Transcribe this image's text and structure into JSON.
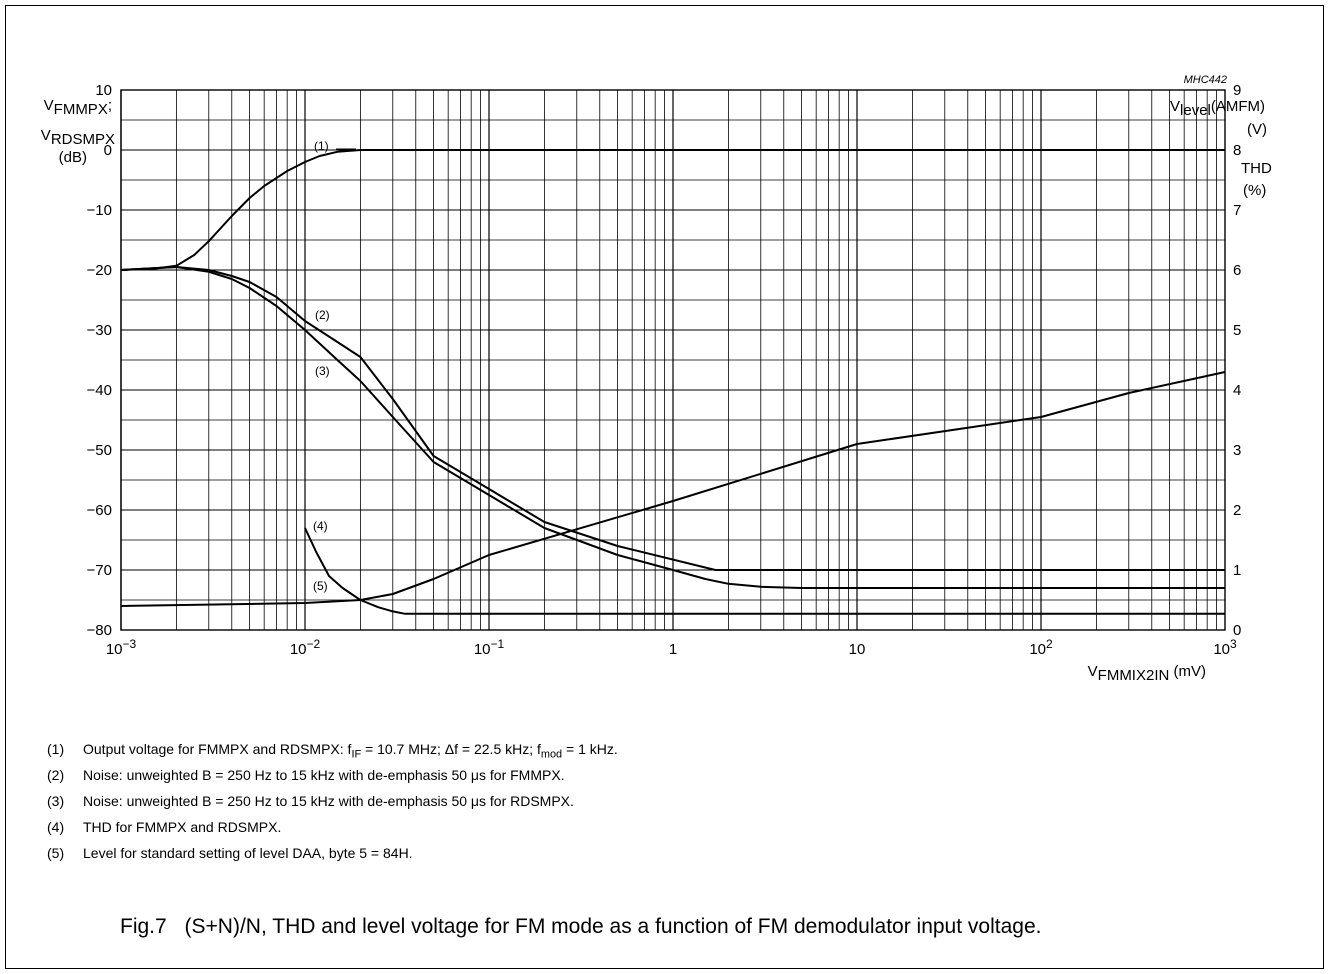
{
  "chart_data": {
    "type": "line",
    "code": "MHC442",
    "x_scale": "log",
    "xlim": [
      0.001,
      1000
    ],
    "x_ticks": [
      {
        "value": 0.001,
        "base": "10",
        "exp": "−3"
      },
      {
        "value": 0.01,
        "base": "10",
        "exp": "−2"
      },
      {
        "value": 0.1,
        "base": "10",
        "exp": "−1"
      },
      {
        "value": 1,
        "text": "1"
      },
      {
        "value": 10,
        "text": "10"
      },
      {
        "value": 100,
        "base": "10",
        "exp": "2"
      },
      {
        "value": 1000,
        "base": "10",
        "exp": "3"
      }
    ],
    "xlabel": {
      "main": "V",
      "sub": "FMMIX2IN",
      "unit": " (mV)"
    },
    "ylim_left": [
      -80,
      10
    ],
    "y_ticks_left": [
      "10",
      "0",
      "−10",
      "−20",
      "−30",
      "−40",
      "−50",
      "−60",
      "−70",
      "−80"
    ],
    "ylabel_left": {
      "line1_main": "V",
      "line1_sub": "FMMPX",
      "line1_end": ";",
      "line2_main": "V",
      "line2_sub": "RDSMPX",
      "line3": "(dB)"
    },
    "ylim_right": [
      0,
      9
    ],
    "y_ticks_right": [
      "9",
      "8",
      "7",
      "6",
      "5",
      "4",
      "3",
      "2",
      "1",
      "0"
    ],
    "ylabel_right": {
      "main": "V",
      "sub": "level",
      "end": "(AMFM)",
      "unit": "(V)",
      "thd": "THD",
      "thd_unit": "(%)"
    },
    "grid": true,
    "series": [
      {
        "label": "(1)",
        "axis": "left",
        "x": [
          0.001,
          0.0015,
          0.002,
          0.0025,
          0.003,
          0.004,
          0.005,
          0.006,
          0.008,
          0.01,
          0.012,
          0.015,
          0.02,
          1000
        ],
        "y": [
          -20,
          -19.8,
          -19.3,
          -17.5,
          -15.2,
          -11,
          -8,
          -6,
          -3.5,
          -2,
          -1,
          -0.3,
          0,
          0
        ]
      },
      {
        "label": "(2)",
        "axis": "left",
        "x": [
          0.001,
          0.002,
          0.003,
          0.004,
          0.005,
          0.007,
          0.01,
          0.015,
          0.02,
          0.03,
          0.05,
          0.1,
          0.2,
          0.5,
          1.7,
          10,
          100,
          1000
        ],
        "y": [
          -20,
          -19.5,
          -20,
          -21,
          -22,
          -24.5,
          -28.5,
          -32,
          -34.5,
          -41.5,
          -51,
          -56.5,
          -62,
          -66,
          -70,
          -70,
          -70,
          -70
        ]
      },
      {
        "label": "(3)",
        "axis": "left",
        "x": [
          0.001,
          0.002,
          0.003,
          0.004,
          0.005,
          0.007,
          0.01,
          0.015,
          0.02,
          0.03,
          0.05,
          0.1,
          0.2,
          0.5,
          1,
          1.5,
          2,
          3,
          5,
          10,
          100,
          1000
        ],
        "y": [
          -20,
          -19.5,
          -20.3,
          -21.5,
          -23,
          -26,
          -30,
          -35,
          -38.5,
          -44.5,
          -52,
          -57.5,
          -63,
          -67.5,
          -70,
          -71.5,
          -72.3,
          -72.8,
          -73,
          -73,
          -73,
          -73
        ]
      },
      {
        "label": "(4)",
        "axis": "right",
        "x": [
          0.01,
          0.0115,
          0.0135,
          0.016,
          0.02,
          0.025,
          0.03,
          0.035,
          1000
        ],
        "y": [
          1.7,
          1.3,
          0.9,
          0.7,
          0.5,
          0.38,
          0.31,
          0.27,
          0.27
        ]
      },
      {
        "label": "(5)",
        "axis": "right",
        "x": [
          0.001,
          0.01,
          0.02,
          0.03,
          0.05,
          0.1,
          1,
          10,
          100,
          300,
          1000
        ],
        "y": [
          0.4,
          0.45,
          0.5,
          0.6,
          0.85,
          1.25,
          2.15,
          3.1,
          3.55,
          3.95,
          4.3
        ]
      }
    ]
  },
  "notes": [
    {
      "num": "(1)",
      "parts": [
        {
          "t": "Output voltage for FMMPX and RDSMPX: f"
        },
        {
          "s": "IF"
        },
        {
          "t": " = 10.7 MHz; Δf = 22.5 kHz; f"
        },
        {
          "s": "mod"
        },
        {
          "t": " = 1 kHz."
        }
      ]
    },
    {
      "num": "(2)",
      "parts": [
        {
          "t": "Noise: unweighted B = 250 Hz to 15 kHz with de-emphasis 50 μs for FMMPX."
        }
      ]
    },
    {
      "num": "(3)",
      "parts": [
        {
          "t": "Noise: unweighted B = 250 Hz to 15 kHz with de-emphasis 50 μs for RDSMPX."
        }
      ]
    },
    {
      "num": "(4)",
      "parts": [
        {
          "t": "THD for FMMPX and RDSMPX."
        }
      ]
    },
    {
      "num": "(5)",
      "parts": [
        {
          "t": "Level for standard setting of level DAA, byte 5 = 84H."
        }
      ]
    }
  ],
  "caption": {
    "fig": "Fig.7",
    "text": "(S+N)/N, THD and level voltage for FM mode as a function of FM demodulator input voltage."
  }
}
